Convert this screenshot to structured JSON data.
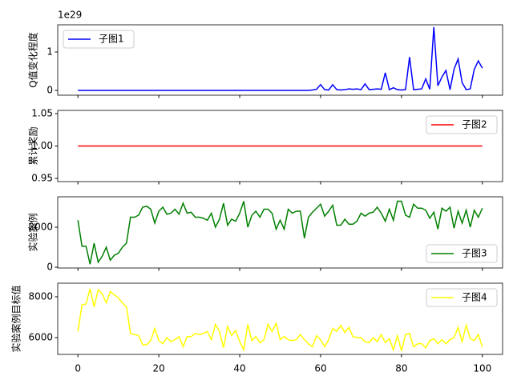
{
  "chart_data": [
    {
      "type": "line",
      "ylabel": "Q值变化程度",
      "offset_label": "1e29",
      "legend": "upper left",
      "xlim": [
        -5,
        105
      ],
      "xticks": [
        0,
        20,
        40,
        60,
        80,
        100
      ],
      "ylim": [
        -0.125,
        1.71
      ],
      "yticks": [
        0,
        1
      ],
      "x": [
        0,
        1,
        2,
        3,
        4,
        5,
        6,
        7,
        8,
        9,
        10,
        11,
        12,
        13,
        14,
        15,
        16,
        17,
        18,
        19,
        20,
        21,
        22,
        23,
        24,
        25,
        26,
        27,
        28,
        29,
        30,
        31,
        32,
        33,
        34,
        35,
        36,
        37,
        38,
        39,
        40,
        41,
        42,
        43,
        44,
        45,
        46,
        47,
        48,
        49,
        50,
        51,
        52,
        53,
        54,
        55,
        56,
        57,
        58,
        59,
        60,
        61,
        62,
        63,
        64,
        65,
        66,
        67,
        68,
        69,
        70,
        71,
        72,
        73,
        74,
        75,
        76,
        77,
        78,
        79,
        80,
        81,
        82,
        83,
        84,
        85,
        86,
        87,
        88,
        89,
        90,
        91,
        92,
        93,
        94,
        95,
        96,
        97,
        98,
        99,
        100
      ],
      "series": [
        {
          "name": "子图1",
          "color": "#0000ff",
          "values": [
            0,
            0,
            0,
            0,
            0,
            0,
            0,
            0,
            0,
            0,
            0,
            0,
            0,
            0,
            0,
            0,
            0,
            0,
            0,
            0,
            0,
            0,
            0,
            0,
            0,
            0,
            0,
            0,
            0,
            0,
            0,
            0,
            0,
            0,
            0,
            0,
            0,
            0,
            0,
            0,
            0,
            0,
            0,
            0,
            0,
            0,
            0,
            0,
            0,
            0,
            0,
            0,
            0,
            0,
            0,
            0,
            0,
            0,
            0.01,
            0.03,
            0.15,
            0.02,
            0.01,
            0.15,
            0.02,
            0.01,
            0.02,
            0.04,
            0.03,
            0.04,
            0.02,
            0.17,
            0.02,
            0.03,
            0.04,
            0.03,
            0.46,
            0.02,
            0.07,
            0.02,
            0.01,
            0.02,
            0.87,
            0.02,
            0.03,
            0.04,
            0.3,
            0.03,
            1.65,
            0.12,
            0.35,
            0.52,
            0.02,
            0.55,
            0.82,
            0.2,
            0.02,
            0.04,
            0.55,
            0.77,
            0.58
          ]
        }
      ]
    },
    {
      "type": "line",
      "ylabel": "累计奖励",
      "legend": "upper right",
      "xlim": [
        -5,
        105
      ],
      "xticks": [
        0,
        20,
        40,
        60,
        80,
        100
      ],
      "ylim": [
        0.945,
        1.055
      ],
      "yticks": [
        0.95,
        {
          "value": 1,
          "label": "1.00"
        },
        1.05
      ],
      "x": [
        0,
        1,
        2,
        3,
        4,
        5,
        6,
        7,
        8,
        9,
        10,
        11,
        12,
        13,
        14,
        15,
        16,
        17,
        18,
        19,
        20,
        21,
        22,
        23,
        24,
        25,
        26,
        27,
        28,
        29,
        30,
        31,
        32,
        33,
        34,
        35,
        36,
        37,
        38,
        39,
        40,
        41,
        42,
        43,
        44,
        45,
        46,
        47,
        48,
        49,
        50,
        51,
        52,
        53,
        54,
        55,
        56,
        57,
        58,
        59,
        60,
        61,
        62,
        63,
        64,
        65,
        66,
        67,
        68,
        69,
        70,
        71,
        72,
        73,
        74,
        75,
        76,
        77,
        78,
        79,
        80,
        81,
        82,
        83,
        84,
        85,
        86,
        87,
        88,
        89,
        90,
        91,
        92,
        93,
        94,
        95,
        96,
        97,
        98,
        99,
        100
      ],
      "series": [
        {
          "name": "子图2",
          "color": "#ff0000",
          "values": [
            1,
            1,
            1,
            1,
            1,
            1,
            1,
            1,
            1,
            1,
            1,
            1,
            1,
            1,
            1,
            1,
            1,
            1,
            1,
            1,
            1,
            1,
            1,
            1,
            1,
            1,
            1,
            1,
            1,
            1,
            1,
            1,
            1,
            1,
            1,
            1,
            1,
            1,
            1,
            1,
            1,
            1,
            1,
            1,
            1,
            1,
            1,
            1,
            1,
            1,
            1,
            1,
            1,
            1,
            1,
            1,
            1,
            1,
            1,
            1,
            1,
            1,
            1,
            1,
            1,
            1,
            1,
            1,
            1,
            1,
            1,
            1,
            1,
            1,
            1,
            1,
            1,
            1,
            1,
            1,
            1,
            1,
            1,
            1,
            1,
            1,
            1,
            1,
            1,
            1,
            1,
            1,
            1,
            1,
            1,
            1,
            1,
            1,
            1,
            1,
            1
          ]
        }
      ]
    },
    {
      "type": "line",
      "ylabel": "实验案例",
      "legend": "lower right",
      "xlim": [
        -5,
        105
      ],
      "xticks": [
        0,
        20,
        40,
        60,
        80,
        100
      ],
      "ylim": [
        -40,
        3520
      ],
      "yticks": [
        0,
        2000
      ],
      "x": [
        0,
        1,
        2,
        3,
        4,
        5,
        6,
        7,
        8,
        9,
        10,
        11,
        12,
        13,
        14,
        15,
        16,
        17,
        18,
        19,
        20,
        21,
        22,
        23,
        24,
        25,
        26,
        27,
        28,
        29,
        30,
        31,
        32,
        33,
        34,
        35,
        36,
        37,
        38,
        39,
        40,
        41,
        42,
        43,
        44,
        45,
        46,
        47,
        48,
        49,
        50,
        51,
        52,
        53,
        54,
        55,
        56,
        57,
        58,
        59,
        60,
        61,
        62,
        63,
        64,
        65,
        66,
        67,
        68,
        69,
        70,
        71,
        72,
        73,
        74,
        75,
        76,
        77,
        78,
        79,
        80,
        81,
        82,
        83,
        84,
        85,
        86,
        87,
        88,
        89,
        90,
        91,
        92,
        93,
        94,
        95,
        96,
        97,
        98,
        99,
        100
      ],
      "series": [
        {
          "name": "子图3",
          "color": "#008000",
          "values": [
            2350,
            1050,
            1050,
            150,
            1200,
            250,
            550,
            1000,
            350,
            600,
            700,
            1000,
            1200,
            2500,
            2500,
            2600,
            3000,
            3050,
            2900,
            2200,
            2800,
            3000,
            2650,
            2700,
            2900,
            2650,
            3200,
            2700,
            2750,
            2500,
            2500,
            2450,
            2350,
            2700,
            2000,
            2400,
            3200,
            2100,
            2400,
            2300,
            2700,
            3300,
            2000,
            2600,
            2800,
            2500,
            2900,
            2900,
            2700,
            1900,
            2350,
            1900,
            2900,
            2700,
            2800,
            2800,
            1450,
            2500,
            2750,
            2950,
            3150,
            2550,
            2800,
            3100,
            2100,
            2100,
            2400,
            2150,
            2150,
            2300,
            2700,
            2550,
            2700,
            2750,
            3000,
            2700,
            2300,
            2900,
            2350,
            3300,
            3300,
            2600,
            2500,
            3150,
            2950,
            2950,
            2850,
            2450,
            2750,
            1900,
            2950,
            2800,
            3000,
            1950,
            2800,
            2200,
            2850,
            2000,
            2850,
            2500,
            2950
          ]
        }
      ]
    },
    {
      "type": "line",
      "ylabel": "实验案例目标值",
      "legend": "upper right",
      "xlim": [
        -5,
        105
      ],
      "xticks": [
        0,
        20,
        40,
        60,
        80,
        100
      ],
      "ylim": [
        5176,
        8667
      ],
      "yticks": [
        6000,
        8000
      ],
      "x": [
        0,
        1,
        2,
        3,
        4,
        5,
        6,
        7,
        8,
        9,
        10,
        11,
        12,
        13,
        14,
        15,
        16,
        17,
        18,
        19,
        20,
        21,
        22,
        23,
        24,
        25,
        26,
        27,
        28,
        29,
        30,
        31,
        32,
        33,
        34,
        35,
        36,
        37,
        38,
        39,
        40,
        41,
        42,
        43,
        44,
        45,
        46,
        47,
        48,
        49,
        50,
        51,
        52,
        53,
        54,
        55,
        56,
        57,
        58,
        59,
        60,
        61,
        62,
        63,
        64,
        65,
        66,
        67,
        68,
        69,
        70,
        71,
        72,
        73,
        74,
        75,
        76,
        77,
        78,
        79,
        80,
        81,
        82,
        83,
        84,
        85,
        86,
        87,
        88,
        89,
        90,
        91,
        92,
        93,
        94,
        95,
        96,
        97,
        98,
        99,
        100
      ],
      "series": [
        {
          "name": "子图4",
          "color": "#ffff00",
          "values": [
            6300,
            7600,
            7650,
            8400,
            7500,
            8350,
            8150,
            7700,
            8250,
            8100,
            7950,
            7700,
            7500,
            6200,
            6150,
            6100,
            5650,
            5650,
            5850,
            6450,
            5850,
            5700,
            6000,
            5800,
            5900,
            6050,
            5550,
            6050,
            6050,
            6200,
            6150,
            6200,
            6300,
            5900,
            6650,
            6300,
            5500,
            6550,
            6100,
            6350,
            5800,
            5400,
            6650,
            5850,
            6050,
            5750,
            5900,
            6650,
            6300,
            6700,
            5900,
            6050,
            5900,
            5850,
            5900,
            6150,
            5900,
            5700,
            5550,
            6100,
            5900,
            5550,
            5900,
            6450,
            6300,
            6600,
            6250,
            6500,
            6050,
            6000,
            6000,
            5800,
            5750,
            6000,
            5800,
            6150,
            5750,
            5950,
            5400,
            6100,
            5350,
            6150,
            6200,
            5550,
            5700,
            5700,
            5500,
            5850,
            5950,
            5700,
            5900,
            5700,
            5900,
            6000,
            6500,
            5800,
            6600,
            5950,
            5850,
            6150,
            5550
          ]
        }
      ]
    }
  ]
}
